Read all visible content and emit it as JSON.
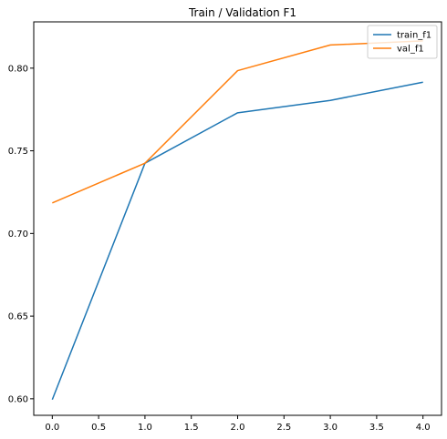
{
  "chart_data": {
    "type": "line",
    "title": "Train / Validation F1",
    "xlabel": "",
    "ylabel": "",
    "x": [
      0,
      1,
      2,
      3,
      4
    ],
    "xlim": [
      -0.2,
      4.2
    ],
    "ylim": [
      0.59,
      0.828
    ],
    "xticks": [
      "0.0",
      "0.5",
      "1.0",
      "1.5",
      "2.0",
      "2.5",
      "3.0",
      "3.5",
      "4.0"
    ],
    "yticks": [
      "0.60",
      "0.65",
      "0.70",
      "0.75",
      "0.80"
    ],
    "grid": false,
    "legend_position": "top-right",
    "series": [
      {
        "name": "train_f1",
        "color": "#1f77b4",
        "values": [
          0.5995,
          0.7425,
          0.773,
          0.7805,
          0.7915
        ]
      },
      {
        "name": "val_f1",
        "color": "#ff7f0e",
        "values": [
          0.7185,
          0.7425,
          0.7985,
          0.814,
          0.8165
        ]
      }
    ]
  }
}
